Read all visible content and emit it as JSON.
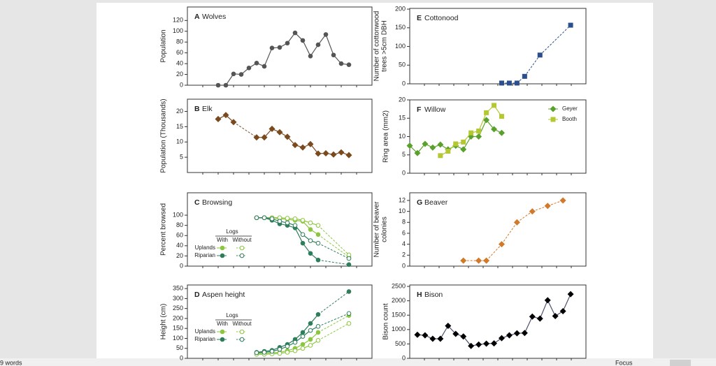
{
  "chart_data": [
    {
      "type": "line",
      "panel": "A",
      "title": "Wolves",
      "ylabel": [
        "Population"
      ],
      "marker": "circle",
      "xlim": [
        -4,
        20
      ],
      "ylim": [
        0,
        145
      ],
      "yticks": [
        0,
        20,
        40,
        60,
        80,
        100,
        120
      ],
      "series": [
        {
          "color": "#555555",
          "x": [
            0,
            1,
            2,
            3,
            4,
            5,
            6,
            7,
            8,
            9,
            10,
            11,
            12,
            13,
            14,
            15,
            16,
            17
          ],
          "values": [
            0,
            0,
            21,
            20,
            32,
            41,
            35,
            69,
            70,
            78,
            97,
            83,
            54,
            75,
            94,
            56,
            40,
            38
          ]
        }
      ]
    },
    {
      "type": "line",
      "panel": "B",
      "title": "Elk",
      "ylabel": [
        "Population (Thousands)"
      ],
      "marker": "diamond",
      "xlim": [
        -4,
        20
      ],
      "ylim": [
        0,
        24
      ],
      "yticks": [
        5,
        10,
        15,
        20
      ],
      "series": [
        {
          "color": "#7a4a1e",
          "x": [
            0,
            1,
            2,
            5,
            6,
            7,
            8,
            9,
            10,
            11,
            12,
            13,
            14,
            15,
            16,
            17
          ],
          "values": [
            17.5,
            18.8,
            16.5,
            11.5,
            11.5,
            14.3,
            13.2,
            11.7,
            9,
            8.2,
            9.3,
            6.2,
            6.3,
            5.9,
            6.6,
            5.7
          ]
        }
      ]
    },
    {
      "type": "line",
      "panel": "C",
      "title": "Browsing",
      "ylabel": [
        "Percent browsed"
      ],
      "marker": "circle",
      "xlim": [
        -4,
        20
      ],
      "ylim": [
        0,
        144
      ],
      "yticks": [
        0,
        20,
        40,
        60,
        80,
        100
      ],
      "legend": {
        "title": "Logs",
        "columns": [
          "With",
          "Without"
        ],
        "rows": [
          "Uplands",
          "Riparian"
        ]
      },
      "series": [
        {
          "color": "#8cc63f",
          "open": false,
          "x": [
            5,
            6,
            7,
            8,
            9,
            10,
            11,
            12,
            13,
            17
          ],
          "values": [
            95,
            95,
            95,
            93,
            92,
            90,
            88,
            72,
            62,
            18
          ]
        },
        {
          "color": "#8cc63f",
          "open": true,
          "x": [
            5,
            6,
            7,
            8,
            9,
            10,
            11,
            12,
            13,
            17
          ],
          "values": [
            95,
            95,
            95,
            95,
            94,
            93,
            90,
            85,
            80,
            22
          ]
        },
        {
          "color": "#2e7d5b",
          "open": false,
          "x": [
            5,
            6,
            7,
            8,
            9,
            10,
            11,
            12,
            13,
            17
          ],
          "values": [
            95,
            95,
            90,
            83,
            80,
            75,
            45,
            25,
            12,
            3
          ]
        },
        {
          "color": "#2e7d5b",
          "open": true,
          "x": [
            5,
            6,
            7,
            8,
            9,
            10,
            11,
            12,
            13,
            17
          ],
          "values": [
            95,
            95,
            93,
            88,
            85,
            80,
            62,
            50,
            45,
            15
          ]
        }
      ]
    },
    {
      "type": "line",
      "panel": "D",
      "title": "Aspen height",
      "ylabel": [
        "Height (cm)"
      ],
      "marker": "circle",
      "xlim": [
        -4,
        20
      ],
      "ylim": [
        0,
        368
      ],
      "yticks": [
        0,
        50,
        100,
        150,
        200,
        250,
        300,
        350
      ],
      "legend": {
        "title": "Logs",
        "columns": [
          "With",
          "Without"
        ],
        "rows": [
          "Uplands",
          "Riparian"
        ]
      },
      "series": [
        {
          "color": "#8cc63f",
          "open": false,
          "x": [
            5,
            6,
            7,
            8,
            9,
            10,
            11,
            12,
            13,
            17
          ],
          "values": [
            25,
            25,
            28,
            30,
            38,
            50,
            70,
            95,
            130,
            215
          ]
        },
        {
          "color": "#8cc63f",
          "open": true,
          "x": [
            5,
            6,
            7,
            8,
            9,
            10,
            11,
            12,
            13,
            17
          ],
          "values": [
            20,
            20,
            22,
            25,
            30,
            38,
            50,
            65,
            90,
            175
          ]
        },
        {
          "color": "#2e7d5b",
          "open": false,
          "x": [
            5,
            6,
            7,
            8,
            9,
            10,
            11,
            12,
            13,
            17
          ],
          "values": [
            30,
            35,
            40,
            55,
            70,
            95,
            130,
            175,
            220,
            335
          ]
        },
        {
          "color": "#2e7d5b",
          "open": true,
          "x": [
            5,
            6,
            7,
            8,
            9,
            10,
            11,
            12,
            13,
            17
          ],
          "values": [
            28,
            30,
            35,
            45,
            60,
            80,
            110,
            140,
            160,
            225
          ]
        }
      ]
    },
    {
      "type": "line",
      "panel": "E",
      "title": "Cottonood",
      "ylabel": [
        "Number of cottonwood",
        "trees >5cm DBH"
      ],
      "marker": "square",
      "dashed": true,
      "xlim": [
        0,
        23
      ],
      "ylim": [
        0,
        202
      ],
      "yticks": [
        0,
        50,
        100,
        150,
        200
      ],
      "series": [
        {
          "color": "#2b4f8c",
          "x": [
            12,
            13,
            14,
            15,
            17,
            21
          ],
          "values": [
            2,
            2,
            2,
            20,
            77,
            157
          ]
        }
      ]
    },
    {
      "type": "line",
      "panel": "F",
      "title": "Willow",
      "ylabel": [
        "Ring area (mm2)"
      ],
      "xlim": [
        0,
        23
      ],
      "ylim": [
        0,
        20
      ],
      "yticks": [
        0,
        5,
        10,
        15,
        20
      ],
      "series": [
        {
          "name": "Geyer",
          "color": "#5aa02c",
          "marker": "diamond",
          "x": [
            0,
            1,
            2,
            3,
            4,
            5,
            6,
            7,
            8,
            9,
            10,
            11,
            12
          ],
          "values": [
            7.5,
            5.5,
            8,
            7,
            7.8,
            6.5,
            7.5,
            6.5,
            10,
            10,
            14.5,
            12,
            11
          ]
        },
        {
          "name": "Booth",
          "color": "#b5c832",
          "marker": "square",
          "x": [
            4,
            5,
            6,
            7,
            8,
            9,
            10,
            11,
            12
          ],
          "values": [
            4.8,
            6,
            8,
            8.5,
            11,
            11.5,
            16.5,
            18.5,
            15.5
          ]
        }
      ]
    },
    {
      "type": "line",
      "panel": "G",
      "title": "Beaver",
      "ylabel": [
        "Number of beaver",
        "colonies"
      ],
      "marker": "diamond",
      "dashed": true,
      "xlim": [
        0,
        23
      ],
      "ylim": [
        0,
        13.4
      ],
      "yticks": [
        0,
        2,
        4,
        6,
        8,
        10,
        12
      ],
      "series": [
        {
          "color": "#d2792a",
          "x": [
            7,
            9,
            10,
            12,
            14,
            16,
            18,
            20
          ],
          "values": [
            1,
            1,
            1,
            4,
            8,
            10,
            11,
            12
          ]
        }
      ]
    },
    {
      "type": "line",
      "panel": "H",
      "title": "Bison",
      "ylabel": [
        "Bison count"
      ],
      "marker": "diamond",
      "xlim": [
        0,
        23
      ],
      "ylim": [
        0,
        2550
      ],
      "yticks": [
        0,
        500,
        1000,
        1500,
        2000,
        2500
      ],
      "series": [
        {
          "color": "#4a5070",
          "markercolor": "#000000",
          "x": [
            1,
            2,
            3,
            4,
            5,
            6,
            7,
            8,
            9,
            10,
            11,
            12,
            13,
            14,
            15,
            16,
            17,
            18,
            19,
            20,
            21
          ],
          "values": [
            820,
            800,
            680,
            680,
            1130,
            850,
            760,
            430,
            480,
            510,
            520,
            700,
            800,
            870,
            880,
            1450,
            1380,
            2020,
            1470,
            1640,
            2230
          ]
        }
      ]
    }
  ],
  "status_bar": {
    "words": "9 words",
    "focus": "Focus"
  }
}
